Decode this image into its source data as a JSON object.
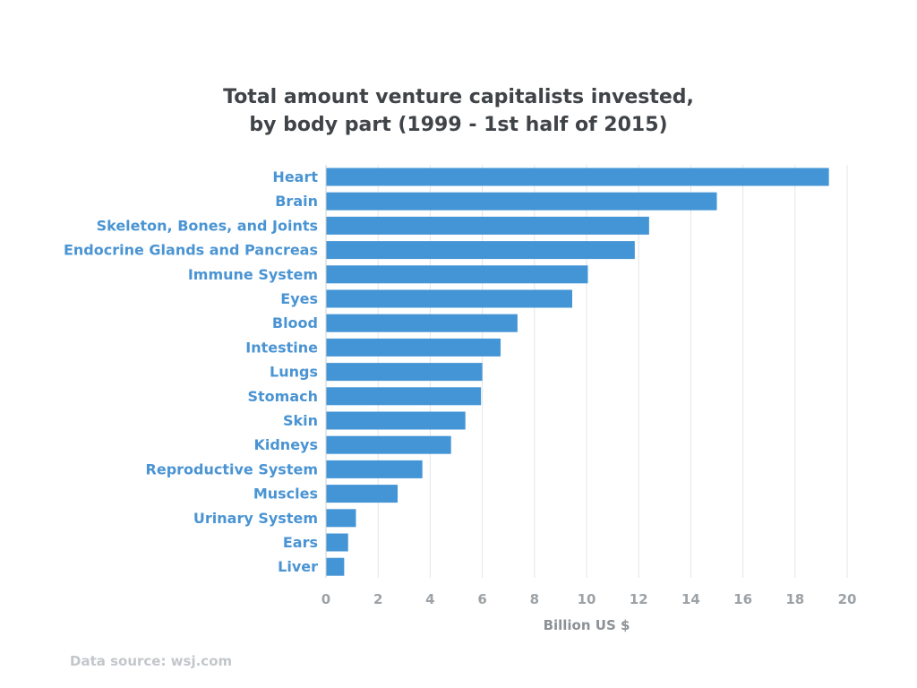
{
  "chart_data": {
    "type": "bar",
    "orientation": "horizontal",
    "title_lines": [
      "Total amount venture capitalists invested,",
      "by body part (1999 - 1st half of 2015)"
    ],
    "categories": [
      "Heart",
      "Brain",
      "Skeleton, Bones, and Joints",
      "Endocrine Glands and Pancreas",
      "Immune System",
      "Eyes",
      "Blood",
      "Intestine",
      "Lungs",
      "Stomach",
      "Skin",
      "Kidneys",
      "Reproductive System",
      "Muscles",
      "Urinary System",
      "Ears",
      "Liver"
    ],
    "values": [
      19.3,
      15.0,
      12.4,
      11.85,
      10.05,
      9.45,
      7.35,
      6.7,
      6.0,
      5.95,
      5.35,
      4.8,
      3.7,
      2.75,
      1.15,
      0.85,
      0.7
    ],
    "xlabel": "Billion US $",
    "ylabel": "",
    "xlim": [
      0,
      20
    ],
    "xticks": [
      0,
      2,
      4,
      6,
      8,
      10,
      12,
      14,
      16,
      18,
      20
    ],
    "grid": true,
    "legend": "none",
    "colors": {
      "bar": "#4495d6",
      "category_label": "#4a94d3",
      "tick_label": "#9da2a6",
      "axis_title": "#8c9196",
      "grid": "#e3e5e7",
      "title": "#404448",
      "source": "#c3c7cb"
    }
  },
  "source_text": "Data source: wsj.com"
}
